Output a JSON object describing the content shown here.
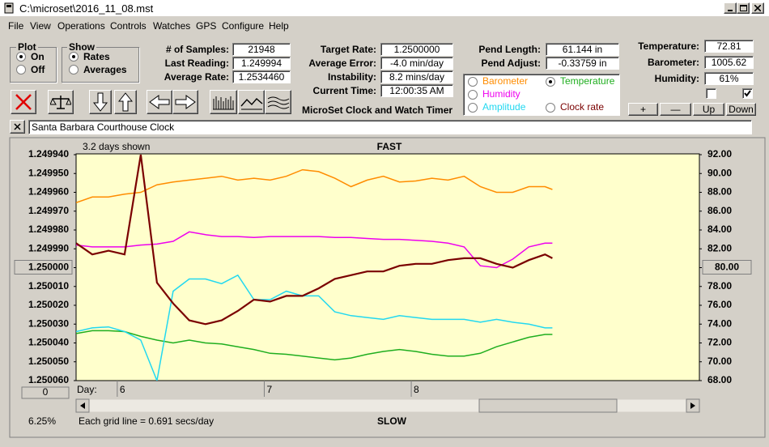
{
  "window": {
    "title": "C:\\microset\\2016_11_08.mst"
  },
  "menu": [
    "File",
    "View",
    "Operations",
    "Controls",
    "Watches",
    "GPS",
    "Configure",
    "Help"
  ],
  "plot_group": {
    "title": "Plot",
    "options": [
      "On",
      "Off"
    ],
    "selected": 0
  },
  "show_group": {
    "title": "Show",
    "options": [
      "Rates",
      "Averages"
    ],
    "selected": 0
  },
  "readouts": [
    [
      {
        "label": "# of Samples:",
        "value": "21948"
      },
      {
        "label": "Last Reading:",
        "value": "1.249994"
      },
      {
        "label": "Average Rate:",
        "value": "1.2534460"
      }
    ],
    [
      {
        "label": "Target Rate:",
        "value": "1.2500000"
      },
      {
        "label": "Average Error:",
        "value": "-4.0 min/day"
      },
      {
        "label": "Instability:",
        "value": "8.2 mins/day"
      },
      {
        "label": "Current Time:",
        "value": "12:00:35 AM"
      }
    ],
    [
      {
        "label": "Pend Length:",
        "value": "61.144 in"
      },
      {
        "label": "Pend Adjust:",
        "value": "-0.33759 in"
      }
    ],
    [
      {
        "label": "Temperature:",
        "value": "72.81"
      },
      {
        "label": "Barometer:",
        "value": "1005.62"
      },
      {
        "label": "Humidity:",
        "value": "61%"
      }
    ]
  ],
  "environment_checks": [
    false,
    true
  ],
  "environment_buttons": [
    "+",
    "—",
    "Up",
    "Down"
  ],
  "app_name": "MicroSet Clock and Watch Timer",
  "clock_name": "Santa Barbara Courthouse Clock",
  "chart_controls": {
    "offset": "0",
    "zoom": "6.25%"
  },
  "chart_data": {
    "type": "line",
    "span_label": "3.2 days shown",
    "top_label": "FAST",
    "bottom_label": "SLOW",
    "x_label": "Day:",
    "grid_note": "Each grid line = 0.691 secs/day",
    "x": [
      5.72,
      5.83,
      5.94,
      6.05,
      6.16,
      6.27,
      6.38,
      6.49,
      6.6,
      6.71,
      6.82,
      6.93,
      7.04,
      7.15,
      7.26,
      7.37,
      7.48,
      7.59,
      7.7,
      7.81,
      7.92,
      8.03,
      8.14,
      8.25,
      8.36,
      8.47,
      8.58,
      8.69,
      8.8,
      8.91,
      8.96
    ],
    "xlim": [
      5.72,
      9.96
    ],
    "xticks": [
      6,
      7,
      8
    ],
    "ylim": [
      1.25006,
      1.24994
    ],
    "yticks": [
      {
        "value": 1.24994,
        "label": "1.249940"
      },
      {
        "value": 1.24995,
        "label": "1.249950"
      },
      {
        "value": 1.24996,
        "label": "1.249960"
      },
      {
        "value": 1.24997,
        "label": "1.249970"
      },
      {
        "value": 1.24998,
        "label": "1.249980"
      },
      {
        "value": 1.24999,
        "label": "1.249990"
      },
      {
        "value": 1.25,
        "label": "1.250000"
      },
      {
        "value": 1.25001,
        "label": "1.250010"
      },
      {
        "value": 1.25002,
        "label": "1.250020"
      },
      {
        "value": 1.25003,
        "label": "1.250030"
      },
      {
        "value": 1.25004,
        "label": "1.250040"
      },
      {
        "value": 1.25005,
        "label": "1.250050"
      },
      {
        "value": 1.25006,
        "label": "1.250060"
      }
    ],
    "y2lim": [
      68,
      92
    ],
    "y2ticks": [
      {
        "value": 92,
        "label": "92.00"
      },
      {
        "value": 90,
        "label": "90.00"
      },
      {
        "value": 88,
        "label": "88.00"
      },
      {
        "value": 86,
        "label": "86.00"
      },
      {
        "value": 84,
        "label": "84.00"
      },
      {
        "value": 82,
        "label": "82.00"
      },
      {
        "value": 80,
        "label": "80.00"
      },
      {
        "value": 78,
        "label": "78.00"
      },
      {
        "value": 76,
        "label": "76.00"
      },
      {
        "value": 74,
        "label": "74.00"
      },
      {
        "value": 72,
        "label": "72.00"
      },
      {
        "value": 70,
        "label": "70.00"
      },
      {
        "value": 68,
        "label": "68.00"
      }
    ],
    "selected_series": 1,
    "series": [
      {
        "name": "Barometer",
        "color": "#ff8c00",
        "axis": "y2",
        "values": [
          86.9,
          87.5,
          87.5,
          87.8,
          88.0,
          88.8,
          89.1,
          89.3,
          89.5,
          89.7,
          89.3,
          89.5,
          89.3,
          89.7,
          90.4,
          90.2,
          89.5,
          88.6,
          89.3,
          89.7,
          89.1,
          89.2,
          89.5,
          89.3,
          89.7,
          88.6,
          88.0,
          88.0,
          88.6,
          88.6,
          88.3
        ]
      },
      {
        "name": "Temperature",
        "color": "#1fae1f",
        "axis": "y2",
        "values": [
          73.0,
          73.3,
          73.3,
          73.2,
          72.7,
          72.3,
          72.0,
          72.3,
          72.0,
          71.9,
          71.6,
          71.3,
          70.9,
          70.8,
          70.6,
          70.4,
          70.2,
          70.4,
          70.8,
          71.1,
          71.3,
          71.1,
          70.8,
          70.6,
          70.6,
          70.9,
          71.6,
          72.1,
          72.6,
          72.9,
          72.9
        ]
      },
      {
        "name": "Humidity",
        "color": "#ee00ee",
        "axis": "y2",
        "values": [
          82.4,
          82.2,
          82.2,
          82.2,
          82.4,
          82.5,
          82.8,
          83.8,
          83.5,
          83.3,
          83.3,
          83.2,
          83.3,
          83.3,
          83.3,
          83.3,
          83.2,
          83.2,
          83.1,
          83.0,
          83.0,
          82.9,
          82.8,
          82.6,
          82.2,
          80.2,
          80.0,
          80.9,
          82.2,
          82.6,
          82.6
        ]
      },
      {
        "name": "Amplitude",
        "color": "#22d8f0",
        "axis": "y2",
        "values": [
          73.2,
          73.6,
          73.7,
          73.2,
          72.3,
          68.0,
          77.5,
          78.8,
          78.8,
          78.3,
          79.2,
          76.6,
          76.6,
          77.5,
          77.0,
          77.0,
          75.3,
          74.9,
          74.7,
          74.5,
          74.9,
          74.7,
          74.5,
          74.5,
          74.5,
          74.2,
          74.5,
          74.2,
          74.0,
          73.6,
          73.6
        ]
      },
      {
        "name": "Clock rate",
        "color": "#7a0000",
        "values": [
          1.249987,
          1.249993,
          1.249991,
          1.249993,
          1.24994,
          1.250008,
          1.250019,
          1.250028,
          1.25003,
          1.250028,
          1.250023,
          1.250017,
          1.250018,
          1.250015,
          1.250015,
          1.250011,
          1.250006,
          1.250004,
          1.250002,
          1.250002,
          1.249999,
          1.249998,
          1.249998,
          1.249996,
          1.249995,
          1.249995,
          1.249998,
          1.25,
          1.249996,
          1.249993,
          1.249995
        ]
      }
    ]
  }
}
